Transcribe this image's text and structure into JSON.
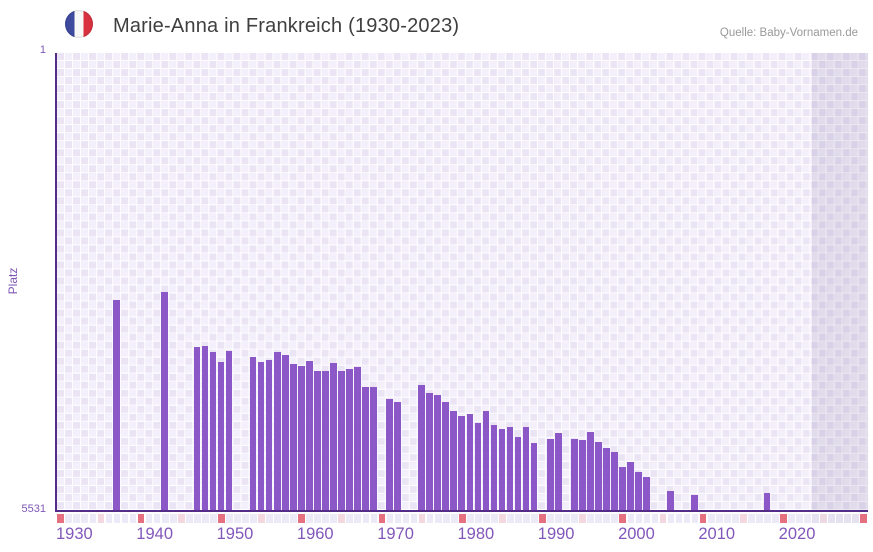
{
  "header": {
    "title": "Marie-Anna in Frankreich (1930-2023)",
    "source": "Quelle: Baby-Vornamen.de",
    "flag_icon": "french-flag-icon"
  },
  "chart_data": {
    "type": "bar",
    "title": "Marie-Anna in Frankreich (1930-2023)",
    "ylabel": "Platz",
    "xlabel": "",
    "y_axis": {
      "top_label": "1",
      "bottom_label": "5531",
      "min": 1,
      "max": 5531,
      "inverted": true
    },
    "x_axis": {
      "data_start": 1930,
      "data_end": 2023,
      "plot_end": 2030,
      "decade_ticks": [
        1930,
        1940,
        1950,
        1960,
        1970,
        1980,
        1990,
        2000,
        2010,
        2020
      ],
      "half_decade_marks": [
        1935,
        1945,
        1955,
        1965,
        1975,
        1985,
        1995,
        2005,
        2015,
        2025
      ]
    },
    "legend": "none",
    "grid": true,
    "points": [
      {
        "year": 1937,
        "rank": 2990
      },
      {
        "year": 1943,
        "rank": 2895
      },
      {
        "year": 1947,
        "rank": 3560
      },
      {
        "year": 1948,
        "rank": 3550
      },
      {
        "year": 1949,
        "rank": 3620
      },
      {
        "year": 1950,
        "rank": 3735
      },
      {
        "year": 1951,
        "rank": 3605
      },
      {
        "year": 1954,
        "rank": 3680
      },
      {
        "year": 1955,
        "rank": 3740
      },
      {
        "year": 1956,
        "rank": 3720
      },
      {
        "year": 1957,
        "rank": 3615
      },
      {
        "year": 1958,
        "rank": 3660
      },
      {
        "year": 1959,
        "rank": 3770
      },
      {
        "year": 1960,
        "rank": 3785
      },
      {
        "year": 1961,
        "rank": 3730
      },
      {
        "year": 1962,
        "rank": 3850
      },
      {
        "year": 1963,
        "rank": 3845
      },
      {
        "year": 1964,
        "rank": 3755
      },
      {
        "year": 1965,
        "rank": 3845
      },
      {
        "year": 1966,
        "rank": 3830
      },
      {
        "year": 1967,
        "rank": 3795
      },
      {
        "year": 1968,
        "rank": 4040
      },
      {
        "year": 1969,
        "rank": 4045
      },
      {
        "year": 1971,
        "rank": 4185
      },
      {
        "year": 1972,
        "rank": 4225
      },
      {
        "year": 1975,
        "rank": 4020
      },
      {
        "year": 1976,
        "rank": 4110
      },
      {
        "year": 1977,
        "rank": 4140
      },
      {
        "year": 1978,
        "rank": 4225
      },
      {
        "year": 1979,
        "rank": 4330
      },
      {
        "year": 1980,
        "rank": 4395
      },
      {
        "year": 1981,
        "rank": 4375
      },
      {
        "year": 1982,
        "rank": 4480
      },
      {
        "year": 1983,
        "rank": 4330
      },
      {
        "year": 1984,
        "rank": 4500
      },
      {
        "year": 1985,
        "rank": 4545
      },
      {
        "year": 1986,
        "rank": 4530
      },
      {
        "year": 1987,
        "rank": 4645
      },
      {
        "year": 1988,
        "rank": 4525
      },
      {
        "year": 1989,
        "rank": 4715
      },
      {
        "year": 1991,
        "rank": 4670
      },
      {
        "year": 1992,
        "rank": 4605
      },
      {
        "year": 1994,
        "rank": 4670
      },
      {
        "year": 1995,
        "rank": 4685
      },
      {
        "year": 1996,
        "rank": 4585
      },
      {
        "year": 1997,
        "rank": 4705
      },
      {
        "year": 1998,
        "rank": 4780
      },
      {
        "year": 1999,
        "rank": 4830
      },
      {
        "year": 2000,
        "rank": 5015
      },
      {
        "year": 2001,
        "rank": 4950
      },
      {
        "year": 2002,
        "rank": 5070
      },
      {
        "year": 2003,
        "rank": 5135
      },
      {
        "year": 2006,
        "rank": 5300
      },
      {
        "year": 2009,
        "rank": 5345
      },
      {
        "year": 2018,
        "rank": 5330
      }
    ],
    "colors": {
      "bar": "#8c57c6",
      "axis": "#532d87",
      "axis_label": "#7e57b5",
      "year_label": "#8257ba",
      "grid_cell_light": "#f4f0fb",
      "grid_cell_dark": "#eae4f5",
      "ruler_decade": "#e5707f",
      "ruler_half_decade": "#f3d8e0",
      "ruler_default": "#edeaf7",
      "ruler_default_future": "#e5e1f0",
      "ruler_half_decade_future": "#ebd8e1",
      "title": "#3f3f3f",
      "source": "#999999",
      "flag_blue": "#3d4a9e",
      "flag_red": "#d8313f"
    }
  }
}
